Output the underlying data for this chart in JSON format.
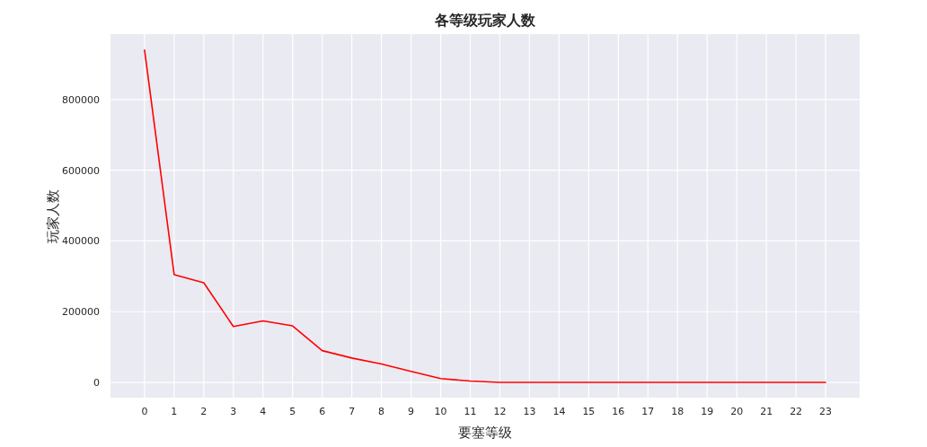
{
  "chart_data": {
    "type": "line",
    "title": "各等级玩家人数",
    "xlabel": "要塞等级",
    "ylabel": "玩家人数",
    "x": [
      0,
      1,
      2,
      3,
      4,
      5,
      6,
      7,
      8,
      9,
      10,
      11,
      12,
      13,
      14,
      15,
      16,
      17,
      18,
      19,
      20,
      21,
      22,
      23
    ],
    "series": [
      {
        "color": "#ff0000",
        "values": [
          940000,
          305000,
          282000,
          158000,
          174000,
          160000,
          90000,
          69000,
          52000,
          31000,
          11000,
          4000,
          0,
          0,
          0,
          0,
          0,
          0,
          0,
          0,
          0,
          0,
          0,
          0
        ]
      }
    ],
    "xlim": [
      -1.15,
      24.15
    ],
    "xticks": [
      0,
      1,
      2,
      3,
      4,
      5,
      6,
      7,
      8,
      9,
      10,
      11,
      12,
      13,
      14,
      15,
      16,
      17,
      18,
      19,
      20,
      21,
      22,
      23
    ],
    "ylim": [
      -43000,
      985000
    ],
    "yticks": [
      0,
      200000,
      400000,
      600000,
      800000
    ],
    "grid": true,
    "marker": "none",
    "line_style": "solid"
  }
}
